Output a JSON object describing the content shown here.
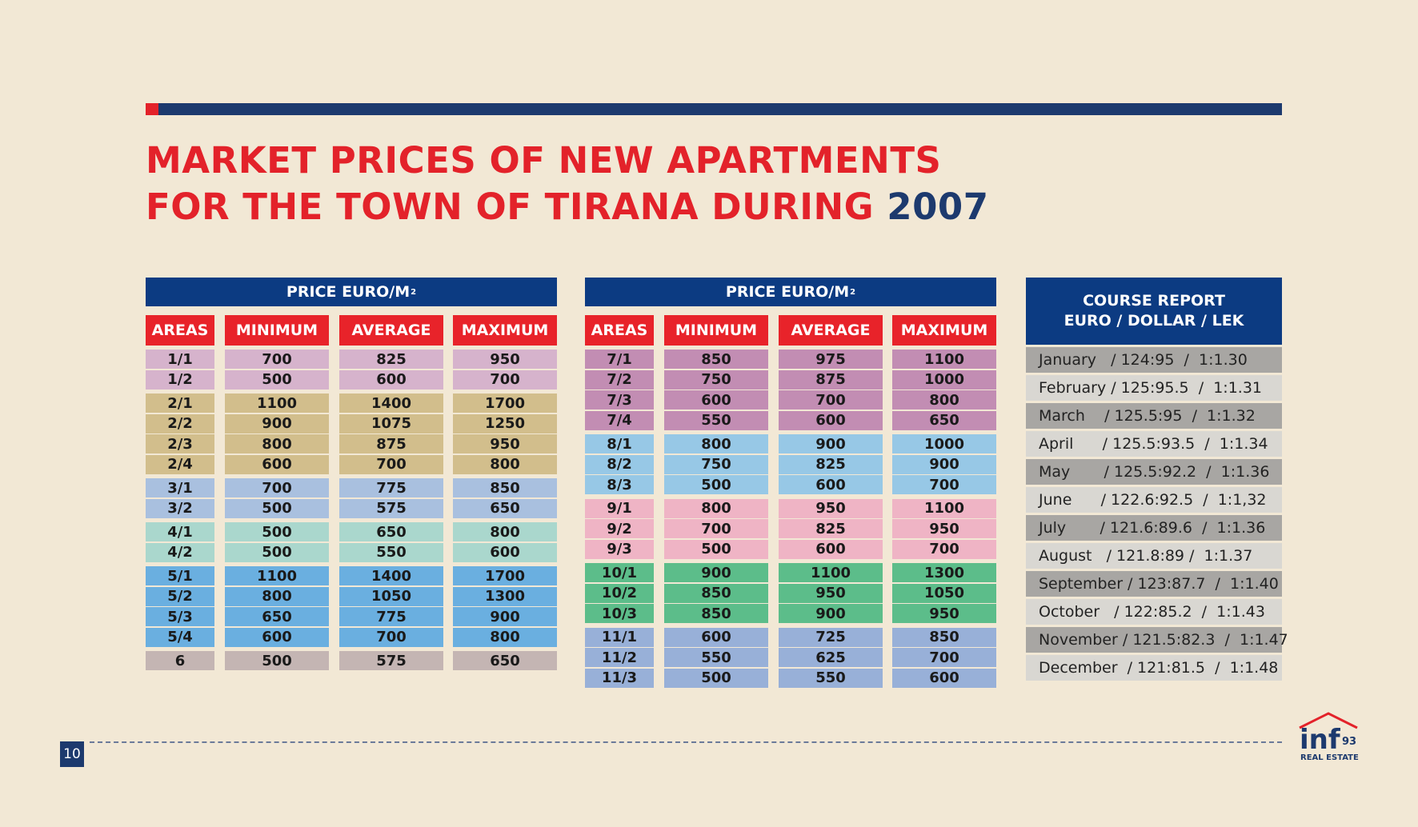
{
  "title": {
    "line1": "MARKET PRICES OF NEW APARTMENTS",
    "line2": "FOR THE TOWN OF TIRANA DURING",
    "year": "2007"
  },
  "price_header": "PRICE  EURO/M",
  "price_sup": "2",
  "columns": [
    "AREAS",
    "MINIMUM",
    "AVERAGE",
    "MAXIMUM"
  ],
  "table_left": [
    {
      "color": "#d6b3cc",
      "rows": [
        [
          "1/1",
          "700",
          "825",
          "950"
        ],
        [
          "1/2",
          "500",
          "600",
          "700"
        ]
      ]
    },
    {
      "color": "#d2be8c",
      "rows": [
        [
          "2/1",
          "1100",
          "1400",
          "1700"
        ],
        [
          "2/2",
          "900",
          "1075",
          "1250"
        ],
        [
          "2/3",
          "800",
          "875",
          "950"
        ],
        [
          "2/4",
          "600",
          "700",
          "800"
        ]
      ]
    },
    {
      "color": "#a9c0df",
      "rows": [
        [
          "3/1",
          "700",
          "775",
          "850"
        ],
        [
          "3/2",
          "500",
          "575",
          "650"
        ]
      ]
    },
    {
      "color": "#aad7cd",
      "rows": [
        [
          "4/1",
          "500",
          "650",
          "800"
        ],
        [
          "4/2",
          "500",
          "550",
          "600"
        ]
      ]
    },
    {
      "color": "#6aafe0",
      "rows": [
        [
          "5/1",
          "1100",
          "1400",
          "1700"
        ],
        [
          "5/2",
          "800",
          "1050",
          "1300"
        ],
        [
          "5/3",
          "650",
          "775",
          "900"
        ],
        [
          "5/4",
          "600",
          "700",
          "800"
        ]
      ]
    },
    {
      "color": "#c4b5b3",
      "rows": [
        [
          "6",
          "500",
          "575",
          "650"
        ]
      ]
    }
  ],
  "table_right": [
    {
      "color": "#c28db3",
      "rows": [
        [
          "7/1",
          "850",
          "975",
          "1100"
        ],
        [
          "7/2",
          "750",
          "875",
          "1000"
        ],
        [
          "7/3",
          "600",
          "700",
          "800"
        ],
        [
          "7/4",
          "550",
          "600",
          "650"
        ]
      ]
    },
    {
      "color": "#97c8e6",
      "rows": [
        [
          "8/1",
          "800",
          "900",
          "1000"
        ],
        [
          "8/2",
          "750",
          "825",
          "900"
        ],
        [
          "8/3",
          "500",
          "600",
          "700"
        ]
      ]
    },
    {
      "color": "#efb4c5",
      "rows": [
        [
          "9/1",
          "800",
          "950",
          "1100"
        ],
        [
          "9/2",
          "700",
          "825",
          "950"
        ],
        [
          "9/3",
          "500",
          "600",
          "700"
        ]
      ]
    },
    {
      "color": "#5cbd8a",
      "rows": [
        [
          "10/1",
          "900",
          "1100",
          "1300"
        ],
        [
          "10/2",
          "850",
          "950",
          "1050"
        ],
        [
          "10/3",
          "850",
          "900",
          "950"
        ]
      ]
    },
    {
      "color": "#98b0d8",
      "rows": [
        [
          "11/1",
          "600",
          "725",
          "850"
        ],
        [
          "11/2",
          "550",
          "625",
          "700"
        ],
        [
          "11/3",
          "500",
          "550",
          "600"
        ]
      ]
    }
  ],
  "course": {
    "header1": "COURSE REPORT",
    "header2": "EURO / DOLLAR / LEK",
    "rows": [
      "January   / 124:95  /  1:1.30",
      "February / 125:95.5  /  1:1.31",
      "March    / 125.5:95  /  1:1.32",
      "April      / 125.5:93.5  /  1:1.34",
      "May       / 125.5:92.2  /  1:1.36",
      "June      / 122.6:92.5  /  1:1,32",
      "July       / 121.6:89.6  /  1:1.36",
      "August   / 121.8:89 /  1:1.37",
      "September / 123:87.7  /  1:1.40",
      "October   / 122:85.2  /  1:1.43",
      "November / 121.5:82.3  /  1:1.47",
      "December  / 121:81.5  /  1:1.48"
    ]
  },
  "page_number": "10",
  "logo": {
    "text": "inf",
    "number": "93",
    "sub": "REAL ESTATE"
  },
  "colors": {
    "navy": "#0c3b82",
    "red": "#e8232a",
    "background": "#f2e8d5"
  }
}
